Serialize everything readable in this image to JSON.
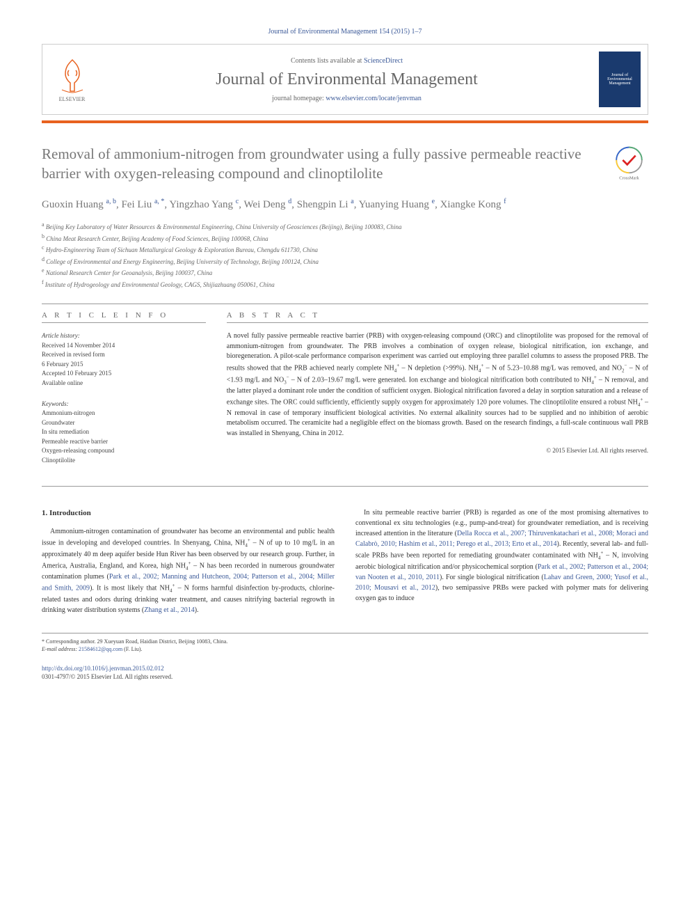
{
  "header": {
    "citation": "Journal of Environmental Management 154 (2015) 1–7",
    "contents_prefix": "Contents lists available at ",
    "contents_link": "ScienceDirect",
    "journal_name": "Journal of Environmental Management",
    "homepage_prefix": "journal homepage: ",
    "homepage_link": "www.elsevier.com/locate/jenvman",
    "elsevier_label": "ELSEVIER",
    "cover_text": "Journal of Environmental Management"
  },
  "title": "Removal of ammonium-nitrogen from groundwater using a fully passive permeable reactive barrier with oxygen-releasing compound and clinoptilolite",
  "crossmark_label": "CrossMark",
  "authors_html": "Guoxin Huang <sup>a, b</sup>, Fei Liu <sup>a, *</sup>, Yingzhao Yang <sup>c</sup>, Wei Deng <sup>d</sup>, Shengpin Li <sup>a</sup>, Yuanying Huang <sup>e</sup>, Xiangke Kong <sup>f</sup>",
  "affiliations": [
    {
      "sup": "a",
      "text": "Beijing Key Laboratory of Water Resources & Environmental Engineering, China University of Geosciences (Beijing), Beijing 100083, China"
    },
    {
      "sup": "b",
      "text": "China Meat Research Center, Beijing Academy of Food Sciences, Beijing 100068, China"
    },
    {
      "sup": "c",
      "text": "Hydro-Engineering Team of Sichuan Metallurgical Geology & Exploration Bureau, Chengdu 611730, China"
    },
    {
      "sup": "d",
      "text": "College of Environmental and Energy Engineering, Beijing University of Technology, Beijing 100124, China"
    },
    {
      "sup": "e",
      "text": "National Research Center for Geoanalysis, Beijing 100037, China"
    },
    {
      "sup": "f",
      "text": "Institute of Hydrogeology and Environmental Geology, CAGS, Shijiazhuang 050061, China"
    }
  ],
  "article_info": {
    "heading": "A R T I C L E   I N F O",
    "history_label": "Article history:",
    "history_lines": [
      "Received 14 November 2014",
      "Received in revised form",
      "6 February 2015",
      "Accepted 10 February 2015",
      "Available online"
    ],
    "keywords_label": "Keywords:",
    "keywords": [
      "Ammonium-nitrogen",
      "Groundwater",
      "In situ remediation",
      "Permeable reactive barrier",
      "Oxygen-releasing compound",
      "Clinoptilolite"
    ]
  },
  "abstract": {
    "heading": "A B S T R A C T",
    "text_html": "A novel fully passive permeable reactive barrier (PRB) with oxygen-releasing compound (ORC) and clinoptilolite was proposed for the removal of ammonium-nitrogen from groundwater. The PRB involves a combination of oxygen release, biological nitrification, ion exchange, and bioregeneration. A pilot-scale performance comparison experiment was carried out employing three parallel columns to assess the proposed PRB. The results showed that the PRB achieved nearly complete NH<sub>4</sub><sup>+</sup> – N depletion (&gt;99%). NH<sub>4</sub><sup>+</sup> – N of 5.23–10.88 mg/L was removed, and NO<sub>2</sub><sup>−</sup> – N of &lt;1.93 mg/L and NO<sub>3</sub><sup>−</sup> – N of 2.03–19.67 mg/L were generated. Ion exchange and biological nitrification both contributed to NH<sub>4</sub><sup>+</sup> – N removal, and the latter played a dominant role under the condition of sufficient oxygen. Biological nitrification favored a delay in sorption saturation and a release of exchange sites. The ORC could sufficiently, efficiently supply oxygen for approximately 120 pore volumes. The clinoptilolite ensured a robust NH<sub>4</sub><sup>+</sup> – N removal in case of temporary insufficient biological activities. No external alkalinity sources had to be supplied and no inhibition of aerobic metabolism occurred. The ceramicite had a negligible effect on the biomass growth. Based on the research findings, a full-scale continuous wall PRB was installed in Shenyang, China in 2012.",
    "copyright": "© 2015 Elsevier Ltd. All rights reserved."
  },
  "introduction": {
    "heading": "1. Introduction",
    "para1_html": "Ammonium-nitrogen contamination of groundwater has become an environmental and public health issue in developing and developed countries. In Shenyang, China, NH<sub>4</sub><sup>+</sup> – N of up to 10 mg/L in an approximately 40 m deep aquifer beside Hun River has been observed by our research group. Further, in America, Australia, England, and Korea, high NH<sub>4</sub><sup>+</sup> – N has been recorded in numerous groundwater contamination plumes (<a>Park et al., 2002; Manning and Hutcheon, 2004; Patterson et al., 2004; Miller and Smith, 2009</a>). It is most likely that NH<sub>4</sub><sup>+</sup> – N forms harmful disinfection by-products, chlorine-related tastes and odors during drinking water treatment, and causes nitrifying bacterial regrowth in drinking water distribution systems (<a>Zhang et al., 2014</a>).",
    "para2_html": "In situ permeable reactive barrier (PRB) is regarded as one of the most promising alternatives to conventional ex situ technologies (e.g., pump-and-treat) for groundwater remediation, and is receiving increased attention in the literature (<a>Della Rocca et al., 2007; Thiruvenkatachari et al., 2008; Moraci and Calabrò, 2010; Hashim et al., 2011; Perego et al., 2013; Erto et al., 2014</a>). Recently, several lab- and full-scale PRBs have been reported for remediating groundwater contaminated with NH<sub>4</sub><sup>+</sup> – N, involving aerobic biological nitrification and/or physicochemical sorption (<a>Park et al., 2002; Patterson et al., 2004; van Nooten et al., 2010, 2011</a>). For single biological nitrification (<a>Lahav and Green, 2000; Yusof et al., 2010; Mousavi et al., 2012</a>), two semipassive PRBs were packed with polymer mats for delivering oxygen gas to induce"
  },
  "footer": {
    "corresponding": "* Corresponding author. 29 Xueyuan Road, Haidian District, Beijing 10083, China.",
    "email_label": "E-mail address:",
    "email": "21584612@qq.com",
    "email_person": "(F. Liu).",
    "doi": "http://dx.doi.org/10.1016/j.jenvman.2015.02.012",
    "issn_copyright": "0301-4797/© 2015 Elsevier Ltd. All rights reserved."
  },
  "colors": {
    "link": "#3b5998",
    "orange_bar": "#e8621f",
    "cover_bg": "#1a3a6e",
    "title_gray": "#777777"
  }
}
